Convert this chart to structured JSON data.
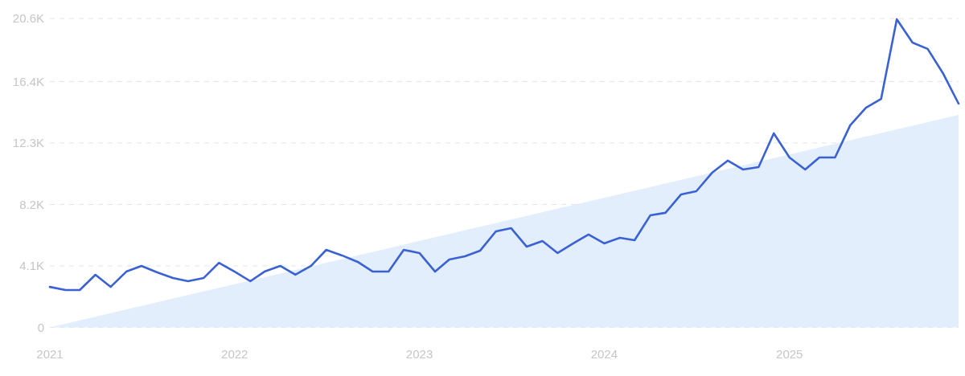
{
  "chart_data": {
    "type": "line",
    "x": [
      "2021-01",
      "2021-02",
      "2021-03",
      "2021-04",
      "2021-05",
      "2021-06",
      "2021-07",
      "2021-08",
      "2021-09",
      "2021-10",
      "2021-11",
      "2021-12",
      "2022-01",
      "2022-02",
      "2022-03",
      "2022-04",
      "2022-05",
      "2022-06",
      "2022-07",
      "2022-08",
      "2022-09",
      "2022-10",
      "2022-11",
      "2022-12",
      "2023-01",
      "2023-02",
      "2023-03",
      "2023-04",
      "2023-05",
      "2023-06",
      "2023-07",
      "2023-08",
      "2023-09",
      "2023-10",
      "2023-11",
      "2023-12",
      "2024-01",
      "2024-02",
      "2024-03",
      "2024-04",
      "2024-05",
      "2024-06",
      "2024-07",
      "2024-08",
      "2024-09",
      "2024-10",
      "2024-11",
      "2024-12",
      "2025-01",
      "2025-02",
      "2025-03",
      "2025-04",
      "2025-05",
      "2025-06",
      "2025-07",
      "2025-08",
      "2025-09",
      "2025-10",
      "2025-11",
      "2025-12"
    ],
    "series": [
      {
        "type": "area",
        "color": "#e3eefc",
        "x": [
          "2021-01",
          "2025-12"
        ],
        "values": [
          0,
          14170
        ]
      },
      {
        "color": "#3a62d4",
        "values": [
          2700,
          2490,
          2490,
          3510,
          2700,
          3720,
          4100,
          3670,
          3300,
          3080,
          3300,
          4310,
          3720,
          3080,
          3720,
          4100,
          3510,
          4100,
          5170,
          4800,
          4370,
          3720,
          3720,
          5170,
          4960,
          3720,
          4530,
          4740,
          5120,
          6400,
          6620,
          5380,
          5760,
          4960,
          5600,
          6190,
          5600,
          5970,
          5810,
          7470,
          7640,
          8870,
          9080,
          10310,
          11120,
          10530,
          10690,
          12940,
          11330,
          10530,
          11330,
          11330,
          13480,
          14650,
          15240,
          20550,
          18990,
          18570,
          16900,
          14920
        ]
      }
    ],
    "xlim": [
      "2021-01",
      "2025-12"
    ],
    "xticks": [
      "2021",
      "2022",
      "2023",
      "2024",
      "2025"
    ],
    "ylim": [
      0,
      20600
    ],
    "yticks": [
      0,
      {
        "value": 4100,
        "label": "4.1K"
      },
      {
        "value": 8200,
        "label": "8.2K"
      },
      {
        "value": 12300,
        "label": "12.3K"
      },
      {
        "value": 16400,
        "label": "16.4K"
      },
      {
        "value": 20600,
        "label": "20.6K"
      }
    ],
    "grid": "y",
    "marker": "none",
    "line_style": "solid"
  }
}
